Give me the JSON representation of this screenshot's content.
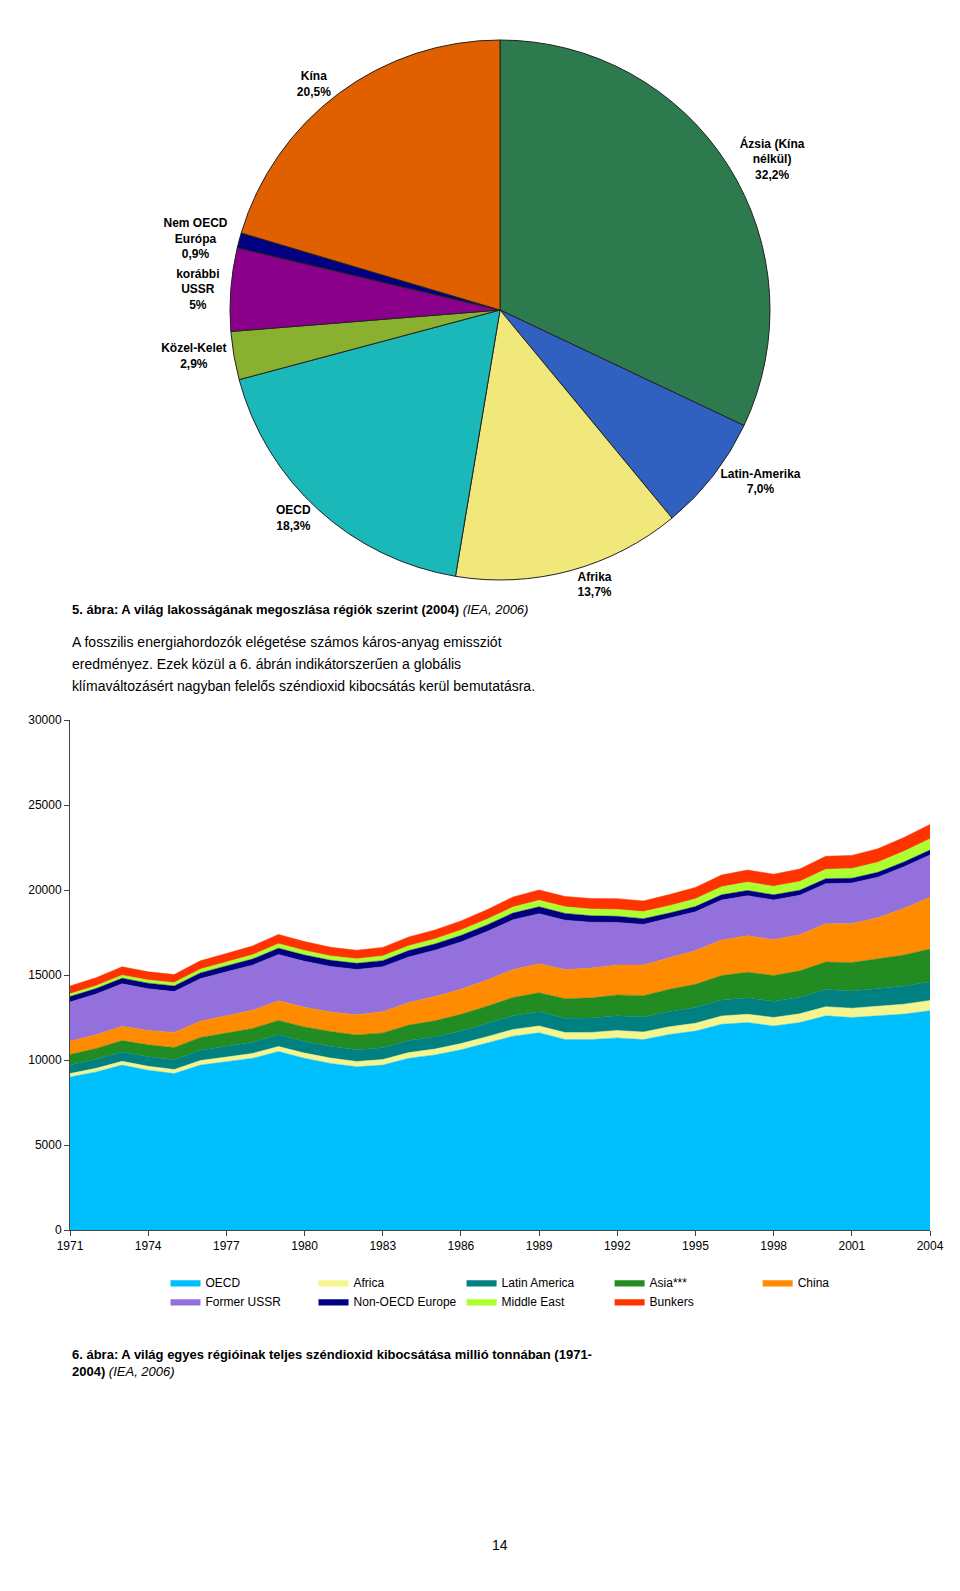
{
  "chart_data": [
    {
      "type": "pie",
      "title": "5. ábra: A világ lakosságának megoszlása régiók szerint (2004)",
      "subtitle": " (IEA, 2006)",
      "categories": [
        "Ázsia (Kína\nnélkül)",
        "Latin-Amerika",
        "Afrika",
        "OECD",
        "Közel-Kelet",
        "korábbi\nUSSR",
        "Nem OECD\nEurópa",
        "Kína"
      ],
      "values": [
        32.2,
        7.0,
        13.7,
        18.3,
        2.9,
        5.0,
        0.9,
        20.5
      ],
      "value_labels": [
        "32,2%",
        "7,0%",
        "13,7%",
        "18,3%",
        "2,9%",
        "5%",
        "0,9%",
        "20,5%"
      ],
      "data_labels": true,
      "colors": [
        "#2d7a4f",
        "#3060c0",
        "#f0e87a",
        "#1ab8b8",
        "#8ab030",
        "#8b008b",
        "#000080",
        "#e06000"
      ],
      "annotations": [
        "A fosszilis energiahordozók elégetése számos káros-anyag emissziót",
        "eredményez. Ezek közül a 6. ábrán indikátorszerűen a globális",
        "klímaváltozásért nagyban felelős széndioxid kibocsátás kerül bemutatásra."
      ]
    },
    {
      "type": "area",
      "stacked": true,
      "title": "6. ábra: A világ egyes régióinak teljes széndioxid kibocsátása millió tonnában (1971-\n2004)",
      "subtitle": " (IEA, 2006)",
      "x": [
        1971,
        1972,
        1973,
        1974,
        1975,
        1976,
        1977,
        1978,
        1979,
        1980,
        1981,
        1982,
        1983,
        1984,
        1985,
        1986,
        1987,
        1988,
        1989,
        1990,
        1991,
        1992,
        1993,
        1994,
        1995,
        1996,
        1997,
        1998,
        1999,
        2000,
        2001,
        2002,
        2003,
        2004
      ],
      "series": [
        {
          "name": "OECD",
          "color": "#00bfff",
          "values": [
            9000,
            9300,
            9700,
            9400,
            9200,
            9700,
            9900,
            10100,
            10500,
            10100,
            9800,
            9600,
            9700,
            10100,
            10300,
            10600,
            11000,
            11400,
            11600,
            11200,
            11200,
            11300,
            11200,
            11500,
            11700,
            12100,
            12200,
            12000,
            12200,
            12600,
            12500,
            12600,
            12700,
            12900
          ]
        },
        {
          "name": "Africa",
          "color": "#f5f590",
          "values": [
            200,
            210,
            220,
            230,
            245,
            265,
            275,
            285,
            295,
            305,
            315,
            315,
            325,
            335,
            345,
            365,
            375,
            395,
            405,
            415,
            425,
            435,
            445,
            455,
            465,
            485,
            495,
            505,
            515,
            535,
            545,
            565,
            585,
            605
          ]
        },
        {
          "name": "Latin America",
          "color": "#008080",
          "values": [
            510,
            530,
            550,
            560,
            570,
            610,
            630,
            660,
            690,
            690,
            700,
            690,
            690,
            710,
            720,
            740,
            770,
            810,
            830,
            840,
            850,
            870,
            880,
            900,
            920,
            950,
            970,
            950,
            970,
            1010,
            1020,
            1040,
            1070,
            1100
          ]
        },
        {
          "name": "Asia***",
          "color": "#228b22",
          "values": [
            620,
            640,
            670,
            700,
            720,
            750,
            780,
            810,
            840,
            850,
            860,
            870,
            880,
            910,
            940,
            980,
            1020,
            1070,
            1120,
            1150,
            1180,
            1220,
            1260,
            1310,
            1370,
            1440,
            1500,
            1520,
            1560,
            1620,
            1670,
            1740,
            1820,
            1920
          ]
        },
        {
          "name": "China",
          "color": "#ff8c00",
          "values": [
            780,
            800,
            840,
            850,
            890,
            960,
            1020,
            1070,
            1160,
            1160,
            1150,
            1190,
            1250,
            1330,
            1430,
            1480,
            1540,
            1650,
            1700,
            1720,
            1750,
            1770,
            1810,
            1870,
            1980,
            2090,
            2140,
            2110,
            2130,
            2250,
            2300,
            2420,
            2750,
            3050
          ]
        },
        {
          "name": "Former USSR",
          "color": "#9370db",
          "values": [
            2300,
            2400,
            2500,
            2450,
            2400,
            2500,
            2580,
            2650,
            2720,
            2700,
            2680,
            2660,
            2640,
            2680,
            2720,
            2780,
            2850,
            2920,
            2950,
            2900,
            2700,
            2500,
            2380,
            2290,
            2280,
            2340,
            2360,
            2330,
            2310,
            2360,
            2370,
            2390,
            2440,
            2490
          ]
        },
        {
          "name": "Non-OECD Europe",
          "color": "#000080",
          "values": [
            320,
            320,
            330,
            330,
            330,
            340,
            350,
            360,
            370,
            370,
            360,
            360,
            360,
            370,
            370,
            380,
            390,
            400,
            410,
            400,
            380,
            360,
            340,
            320,
            310,
            310,
            305,
            300,
            295,
            290,
            285,
            285,
            285,
            285
          ]
        },
        {
          "name": "Middle East",
          "color": "#adff2f",
          "values": [
            160,
            170,
            180,
            190,
            200,
            220,
            230,
            250,
            270,
            270,
            260,
            270,
            280,
            290,
            300,
            315,
            335,
            355,
            375,
            385,
            395,
            405,
            415,
            435,
            455,
            475,
            495,
            505,
            525,
            555,
            575,
            595,
            625,
            665
          ]
        },
        {
          "name": "Bunkers",
          "color": "#ff3300",
          "values": [
            460,
            470,
            490,
            480,
            470,
            490,
            500,
            520,
            540,
            520,
            510,
            500,
            500,
            510,
            520,
            540,
            560,
            590,
            610,
            610,
            620,
            630,
            630,
            650,
            670,
            690,
            710,
            710,
            730,
            760,
            770,
            790,
            810,
            840
          ]
        }
      ],
      "xlim": [
        1971,
        2004
      ],
      "xticks": [
        1971,
        1974,
        1977,
        1980,
        1983,
        1986,
        1989,
        1992,
        1995,
        1998,
        2001,
        2004
      ],
      "ylim": [
        0,
        30000
      ],
      "yticks": [
        0,
        5000,
        10000,
        15000,
        20000,
        25000,
        30000
      ],
      "grid": false,
      "legend": "bottom",
      "annotations": [
        "14"
      ]
    }
  ]
}
